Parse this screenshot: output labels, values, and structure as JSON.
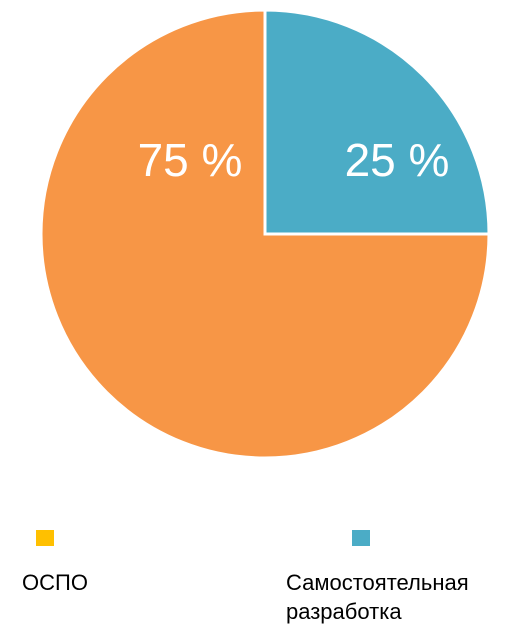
{
  "chart_data": {
    "type": "pie",
    "title": "",
    "slices": [
      {
        "label": "Самостоятельная разработка",
        "value": 25,
        "display": "25 %",
        "color": "#4bacc6"
      },
      {
        "label": "ОСПО",
        "value": 75,
        "display": "75 %",
        "color": "#f79646"
      }
    ],
    "start_angle_deg": 0,
    "direction": "clockwise",
    "legend": {
      "position": "bottom",
      "items": [
        {
          "label": "ОСПО",
          "color": "#ffc000"
        },
        {
          "label": "Самостоятельная\nразработка",
          "color": "#4bacc6"
        }
      ]
    }
  }
}
